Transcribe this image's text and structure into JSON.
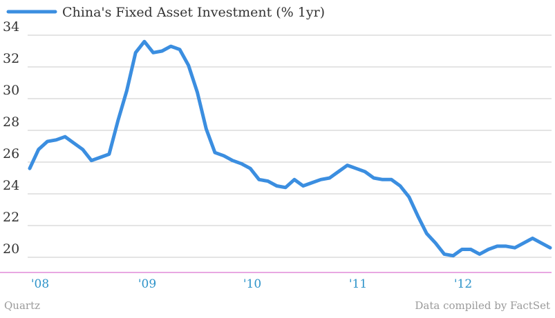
{
  "chart_data": {
    "type": "line",
    "title": "",
    "xlabel": "",
    "ylabel": "",
    "legend_position": "top-left",
    "grid": true,
    "ylim": [
      19,
      34.5
    ],
    "x_ticks": [
      "'08",
      "'09",
      "'10",
      "'11",
      "'12"
    ],
    "y_ticks": [
      20,
      22,
      24,
      26,
      28,
      30,
      32,
      34
    ],
    "series": [
      {
        "name": "China's Fixed Asset Investment (% 1yr)",
        "color": "#3b8ee0",
        "values": [
          25.6,
          26.8,
          27.3,
          27.4,
          27.6,
          27.2,
          26.8,
          26.1,
          26.3,
          26.5,
          28.6,
          30.5,
          32.9,
          33.6,
          32.9,
          33.0,
          33.3,
          33.1,
          32.1,
          30.4,
          28.1,
          26.6,
          26.4,
          26.1,
          25.9,
          25.6,
          24.9,
          24.8,
          24.5,
          24.4,
          24.9,
          24.5,
          24.7,
          24.9,
          25.0,
          25.4,
          25.8,
          25.6,
          25.4,
          25.0,
          24.9,
          24.9,
          24.5,
          23.8,
          22.6,
          21.5,
          20.9,
          20.2,
          20.1,
          20.5,
          20.5,
          20.2,
          20.5,
          20.7,
          20.7,
          20.6,
          20.9,
          21.2,
          20.9,
          20.6
        ]
      }
    ]
  },
  "footer": {
    "source_left": "Quartz",
    "source_right": "Data compiled by FactSet"
  },
  "colors": {
    "line": "#3b8ee0",
    "grid": "#c8c8c8",
    "baseline": "#e08ad8",
    "x_tick": "#2d93c9"
  }
}
